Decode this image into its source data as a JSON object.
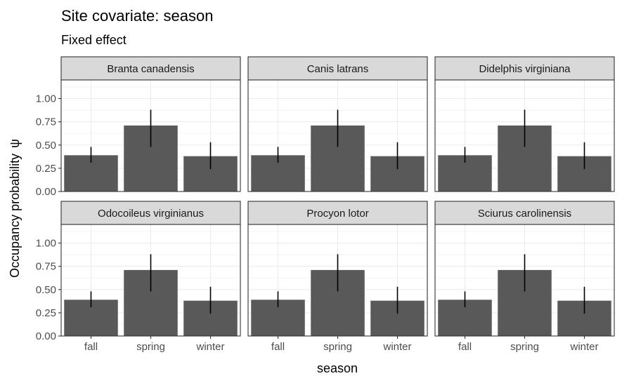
{
  "chart_data": {
    "type": "bar",
    "title": "Site covariate: season",
    "subtitle": "Fixed effect",
    "xlabel": "season",
    "ylabel": "Occupancy probability",
    "ylabel_symbol": "ψ",
    "categories": [
      "fall",
      "spring",
      "winter"
    ],
    "yticks": [
      "0.00",
      "0.25",
      "0.50",
      "0.75",
      "1.00"
    ],
    "ylim": [
      0,
      1.2
    ],
    "grid": true,
    "bar_color": "#595959",
    "errorbar_color": "#000000",
    "strip_color": "#d9d9d9",
    "facets": [
      {
        "name": "Branta canadensis",
        "values": [
          0.39,
          0.71,
          0.38
        ],
        "lower": [
          0.31,
          0.48,
          0.24
        ],
        "upper": [
          0.48,
          0.88,
          0.53
        ]
      },
      {
        "name": "Canis latrans",
        "values": [
          0.39,
          0.71,
          0.38
        ],
        "lower": [
          0.31,
          0.48,
          0.24
        ],
        "upper": [
          0.48,
          0.88,
          0.53
        ]
      },
      {
        "name": "Didelphis virginiana",
        "values": [
          0.39,
          0.71,
          0.38
        ],
        "lower": [
          0.31,
          0.48,
          0.24
        ],
        "upper": [
          0.48,
          0.88,
          0.53
        ]
      },
      {
        "name": "Odocoileus virginianus",
        "values": [
          0.39,
          0.71,
          0.38
        ],
        "lower": [
          0.31,
          0.48,
          0.24
        ],
        "upper": [
          0.48,
          0.88,
          0.53
        ]
      },
      {
        "name": "Procyon lotor",
        "values": [
          0.39,
          0.71,
          0.38
        ],
        "lower": [
          0.31,
          0.48,
          0.24
        ],
        "upper": [
          0.48,
          0.88,
          0.53
        ]
      },
      {
        "name": "Sciurus carolinensis",
        "values": [
          0.39,
          0.71,
          0.38
        ],
        "lower": [
          0.31,
          0.48,
          0.24
        ],
        "upper": [
          0.48,
          0.88,
          0.53
        ]
      }
    ]
  }
}
